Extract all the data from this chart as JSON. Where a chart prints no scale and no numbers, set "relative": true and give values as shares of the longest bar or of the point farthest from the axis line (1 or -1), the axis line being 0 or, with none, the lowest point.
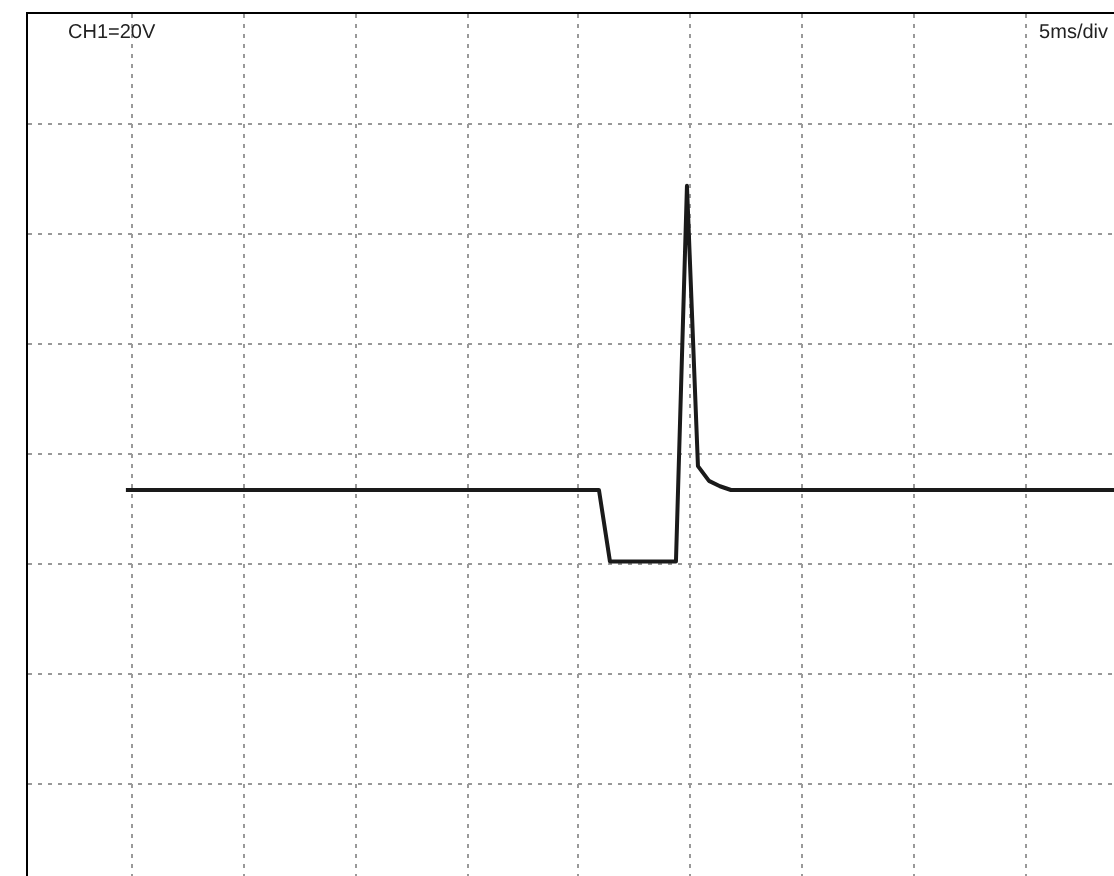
{
  "chart_data": {
    "type": "line",
    "relative": true,
    "grid": true,
    "marker": "none",
    "line_style": "solid",
    "categories": [
      null,
      null,
      null,
      null,
      null,
      null,
      null,
      null,
      null,
      null,
      null,
      null,
      null,
      null,
      null,
      null,
      null,
      null,
      null,
      null,
      null,
      null,
      null,
      null,
      null,
      null,
      null,
      null,
      null,
      null,
      null,
      null,
      null,
      null,
      null,
      null,
      null,
      null,
      null,
      null,
      null,
      null,
      null,
      null,
      null,
      null,
      null,
      null,
      null,
      null,
      null,
      null,
      null,
      null,
      null,
      null,
      null,
      null,
      null,
      null,
      null,
      null,
      null,
      null,
      null,
      null,
      null,
      null,
      null,
      null,
      null,
      null,
      null,
      null,
      null,
      null,
      null,
      null,
      null,
      null,
      null,
      null,
      null,
      null,
      null,
      null,
      null,
      null,
      null,
      null,
      null
    ],
    "series": [
      {
        "color": "#1a1a1a",
        "values": [
          -0.134,
          -0.134,
          -0.134,
          -0.134,
          -0.134,
          -0.134,
          -0.134,
          -0.134,
          -0.134,
          -0.134,
          -0.134,
          -0.134,
          -0.134,
          -0.134,
          -0.134,
          -0.134,
          -0.134,
          -0.134,
          -0.134,
          -0.134,
          -0.134,
          -0.134,
          -0.134,
          -0.134,
          -0.134,
          -0.134,
          -0.134,
          -0.134,
          -0.134,
          -0.134,
          -0.134,
          -0.134,
          -0.134,
          -0.134,
          -0.134,
          -0.134,
          -0.134,
          -0.134,
          -0.134,
          -0.134,
          -0.134,
          -0.134,
          -0.134,
          -0.134,
          -0.4,
          -0.4,
          -0.4,
          -0.4,
          -0.4,
          -0.4,
          -0.4,
          1,
          -0.045,
          -0.1,
          -0.12,
          -0.134,
          -0.134,
          -0.134,
          -0.134,
          -0.134,
          -0.134,
          -0.134,
          -0.134,
          -0.134,
          -0.134,
          -0.134,
          -0.134,
          -0.134,
          -0.134,
          -0.134,
          -0.134,
          -0.134,
          -0.134,
          -0.134,
          -0.134,
          -0.134,
          -0.134,
          -0.134,
          -0.134,
          -0.134,
          -0.134,
          -0.134,
          -0.134,
          -0.134,
          -0.134,
          -0.134,
          -0.134,
          -0.134,
          -0.134,
          -0.134,
          -0.134
        ]
      }
    ],
    "annotations": [
      "CH1=20V",
      "5ms/div"
    ]
  }
}
